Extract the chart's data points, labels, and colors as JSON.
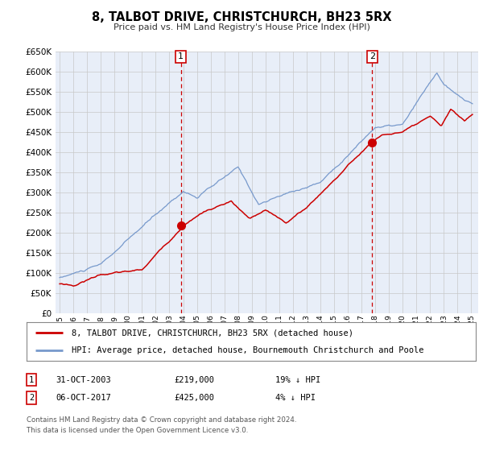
{
  "title": "8, TALBOT DRIVE, CHRISTCHURCH, BH23 5RX",
  "subtitle": "Price paid vs. HM Land Registry's House Price Index (HPI)",
  "ylim": [
    0,
    650000
  ],
  "yticks": [
    0,
    50000,
    100000,
    150000,
    200000,
    250000,
    300000,
    350000,
    400000,
    450000,
    500000,
    550000,
    600000,
    650000
  ],
  "xlim_start": 1994.7,
  "xlim_end": 2025.5,
  "bg_color": "#e8eef8",
  "grid_color": "#c8c8c8",
  "red_color": "#cc0000",
  "blue_color": "#7799cc",
  "legend_label_red": "8, TALBOT DRIVE, CHRISTCHURCH, BH23 5RX (detached house)",
  "legend_label_blue": "HPI: Average price, detached house, Bournemouth Christchurch and Poole",
  "sale1_date": "31-OCT-2003",
  "sale1_price": "£219,000",
  "sale1_hpi": "19% ↓ HPI",
  "sale1_year": 2003.83,
  "sale1_value": 219000,
  "sale2_date": "06-OCT-2017",
  "sale2_price": "£425,000",
  "sale2_hpi": "4% ↓ HPI",
  "sale2_year": 2017.77,
  "sale2_value": 425000,
  "footer1": "Contains HM Land Registry data © Crown copyright and database right 2024.",
  "footer2": "This data is licensed under the Open Government Licence v3.0."
}
